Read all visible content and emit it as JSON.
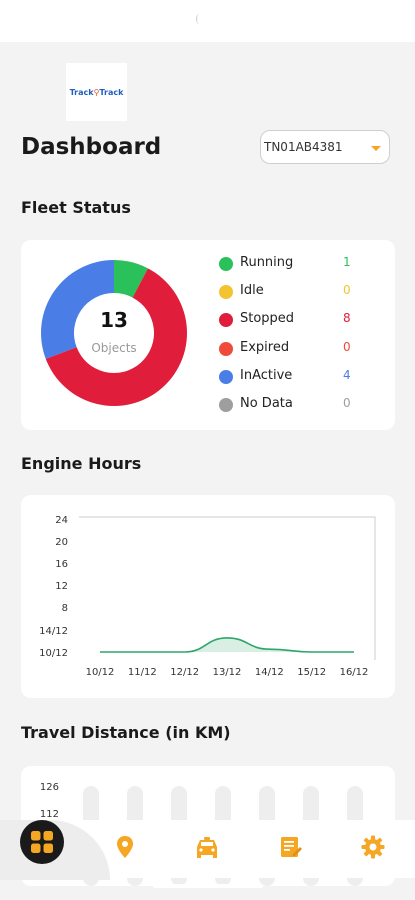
{
  "header": {
    "logo_part1": "Track",
    "logo_part2": "Track",
    "title": "Dashboard",
    "vehicle": "TN01AB4381"
  },
  "fleet_status": {
    "title": "Fleet Status",
    "total": "13",
    "total_label": "Objects",
    "items": [
      {
        "label": "Running",
        "count": "1",
        "color": "#2bc15a"
      },
      {
        "label": "Idle",
        "count": "0",
        "color": "#f4c430"
      },
      {
        "label": "Stopped",
        "count": "8",
        "color": "#e01d3a"
      },
      {
        "label": "Expired",
        "count": "0",
        "color": "#ee4b3a"
      },
      {
        "label": "InActive",
        "count": "4",
        "color": "#4a7ee6"
      },
      {
        "label": "No Data",
        "count": "0",
        "color": "#9e9e9e"
      }
    ]
  },
  "engine_hours": {
    "title": "Engine Hours",
    "chart_data": {
      "type": "area",
      "categories": [
        "10/12",
        "11/12",
        "12/12",
        "13/12",
        "14/12",
        "15/12",
        "16/12"
      ],
      "y_tick_labels": [
        "24",
        "20",
        "16",
        "12",
        "8",
        "14/12",
        "10/12"
      ],
      "values": [
        0,
        0,
        0,
        2.5,
        0.5,
        0,
        0
      ],
      "ylim": [
        0,
        24
      ],
      "color": "#2ea56a"
    }
  },
  "travel_distance": {
    "title": "Travel Distance (in KM)",
    "chart_data": {
      "type": "bar",
      "y_tick_labels": [
        "126",
        "112"
      ]
    }
  },
  "nav": {
    "items": [
      "dashboard-icon",
      "location-pin-icon",
      "car-icon",
      "report-icon",
      "settings-icon"
    ],
    "accent": "#f5a623"
  }
}
